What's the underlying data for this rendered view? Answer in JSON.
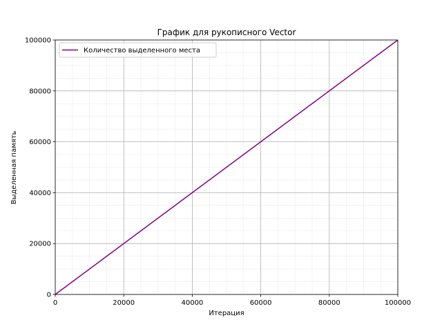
{
  "chart_data": {
    "type": "line",
    "title": "График для рукописного Vector",
    "xlabel": "Итерация",
    "ylabel": "Выделенная память",
    "xlim": [
      0,
      100000
    ],
    "ylim": [
      0,
      100000
    ],
    "xticks": [
      "0",
      "20000",
      "40000",
      "60000",
      "80000",
      "100000"
    ],
    "yticks": [
      "0",
      "20000",
      "40000",
      "60000",
      "80000",
      "100000"
    ],
    "grid": true,
    "minor_grid": true,
    "legend_position": "upper-left",
    "series": [
      {
        "name": "Количество выделенного места",
        "color": "#800080",
        "x": [
          0,
          100000
        ],
        "y": [
          0,
          100000
        ]
      }
    ]
  }
}
